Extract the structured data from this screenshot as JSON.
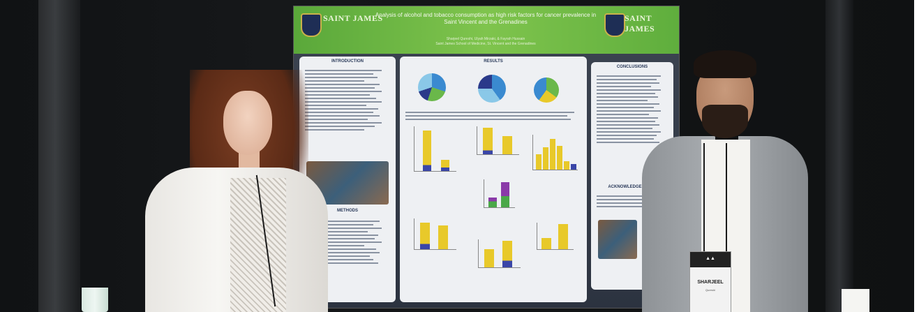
{
  "poster": {
    "logo_text": "SAINT JAMES",
    "title": "Analysis of alcohol and tobacco consumption as high risk factors for cancer prevalence in Saint Vincent and the Grenadines",
    "authors": "Sharjeel Qureshi, Ulyah Mirzaki, & Fayrah Hussain",
    "affiliation": "Saint James School of Medicine, St. Vincent and the Grenadines",
    "sections": {
      "introduction": "INTRODUCTION",
      "results": "RESULTS",
      "conclusions": "CONCLUSIONS",
      "methods": "METHODS",
      "acknowledgements": "ACKNOWLEDGEMENTS"
    }
  },
  "badge": {
    "name": "SHARJEEL",
    "surname": "Qureshi"
  },
  "colors": {
    "poster_header": "#6fb844",
    "poster_background": "#343b48",
    "panel": "#eef0f3",
    "chart_yellow": "#e8c92a",
    "chart_blue": "#3a46a8",
    "chart_purple": "#8a3aa8",
    "chart_green": "#4aa848"
  }
}
